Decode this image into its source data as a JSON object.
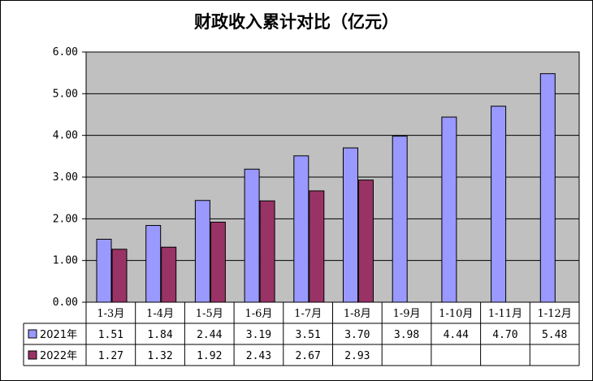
{
  "chart_data": {
    "type": "bar",
    "title": "财政收入累计对比（亿元）",
    "categories": [
      "1-3月",
      "1-4月",
      "1-5月",
      "1-6月",
      "1-7月",
      "1-8月",
      "1-9月",
      "1-10月",
      "1-11月",
      "1-12月"
    ],
    "series": [
      {
        "name": "2021年",
        "color": "#9999ff",
        "values": [
          1.51,
          1.84,
          2.44,
          3.19,
          3.51,
          3.7,
          3.98,
          4.44,
          4.7,
          5.48
        ],
        "labels": [
          "1.51",
          "1.84",
          "2.44",
          "3.19",
          "3.51",
          "3.70",
          "3.98",
          "4.44",
          "4.70",
          "5.48"
        ]
      },
      {
        "name": "2022年",
        "color": "#993366",
        "values": [
          1.27,
          1.32,
          1.92,
          2.43,
          2.67,
          2.93,
          null,
          null,
          null,
          null
        ],
        "labels": [
          "1.27",
          "1.32",
          "1.92",
          "2.43",
          "2.67",
          "2.93",
          "",
          "",
          "",
          ""
        ]
      }
    ],
    "ylim": [
      0,
      6
    ],
    "yticks": [
      "0.00",
      "1.00",
      "2.00",
      "3.00",
      "4.00",
      "5.00",
      "6.00"
    ],
    "ytick_values": [
      0,
      1,
      2,
      3,
      4,
      5,
      6
    ],
    "grid": true,
    "legend": "data-table",
    "plot_background": "#c0c0c0"
  }
}
